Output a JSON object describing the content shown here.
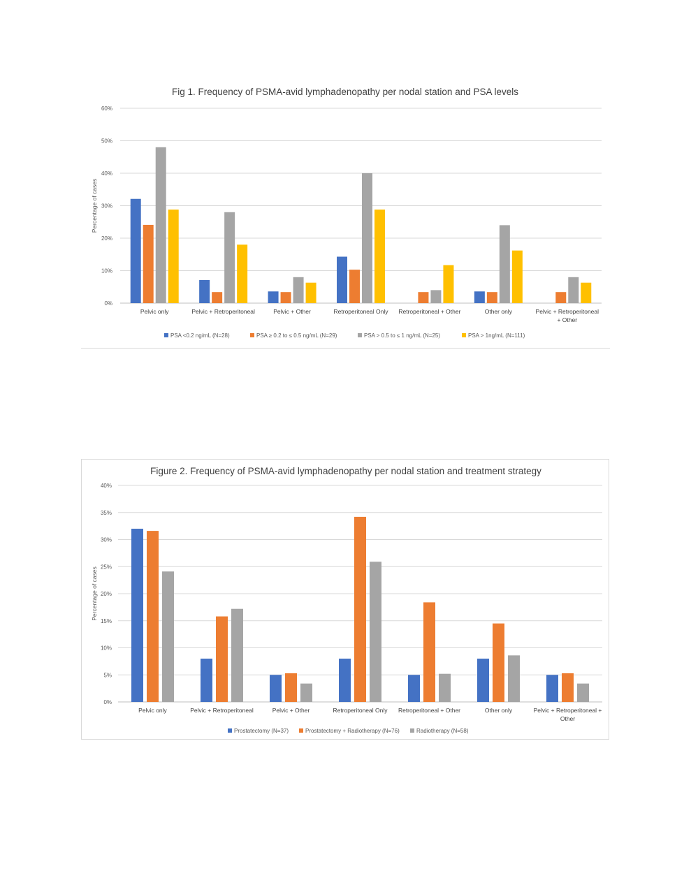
{
  "chart_data": [
    {
      "type": "bar",
      "title": "Fig 1. Frequency of PSMA-avid lymphadenopathy per nodal station and PSA levels",
      "xlabel": "",
      "ylabel": "Percentage of cases",
      "ylim": [
        0,
        60
      ],
      "yticks": [
        "0%",
        "10%",
        "20%",
        "30%",
        "40%",
        "50%",
        "60%"
      ],
      "grid": true,
      "legend_position": "bottom",
      "categories": [
        [
          "Pelvic  only"
        ],
        [
          "Pelvic + Retroperitoneal"
        ],
        [
          "Pelvic + Other"
        ],
        [
          "Retroperitoneal Only"
        ],
        [
          "Retroperitoneal + Other"
        ],
        [
          "Other only"
        ],
        [
          "Pelvic + Retroperitoneal",
          "+ Other"
        ]
      ],
      "series": [
        {
          "name": "PSA <0.2 ng/mL (N=28)",
          "color": "#4472c4",
          "values": [
            32.1,
            7.1,
            3.6,
            14.3,
            0,
            3.6,
            0
          ]
        },
        {
          "name": "PSA ≥ 0.2 to ≤ 0.5 ng/mL (N=29)",
          "color": "#ed7d31",
          "values": [
            24.1,
            3.4,
            3.4,
            10.3,
            3.4,
            3.4,
            3.4
          ]
        },
        {
          "name": "PSA > 0.5 to ≤ 1 ng/mL (N=25)",
          "color": "#a5a5a5",
          "values": [
            48,
            28,
            8,
            40,
            4,
            24,
            8
          ]
        },
        {
          "name": "PSA > 1ng/mL (N=111)",
          "color": "#ffc000",
          "values": [
            28.8,
            18,
            6.3,
            28.8,
            11.7,
            16.2,
            6.3
          ]
        }
      ]
    },
    {
      "type": "bar",
      "title": "Figure 2. Frequency of PSMA-avid lymphadenopathy  per nodal station and treatment strategy",
      "xlabel": "",
      "ylabel": "Percentage of cases",
      "ylim": [
        0,
        40
      ],
      "yticks": [
        "0%",
        "5%",
        "10%",
        "15%",
        "20%",
        "25%",
        "30%",
        "35%",
        "40%"
      ],
      "grid": true,
      "legend_position": "bottom",
      "categories": [
        [
          "Pelvic  only"
        ],
        [
          "Pelvic + Retroperitoneal"
        ],
        [
          "Pelvic + Other"
        ],
        [
          "Retroperitoneal Only"
        ],
        [
          "Retroperitoneal + Other"
        ],
        [
          "Other only"
        ],
        [
          "Pelvic + Retroperitoneal +",
          "Other"
        ]
      ],
      "series": [
        {
          "name": "Prostatectomy (N=37)",
          "color": "#4472c4",
          "values": [
            32,
            8,
            5,
            8,
            5,
            8,
            5
          ]
        },
        {
          "name": "Prostatectomy + Radiotherapy (N=76)",
          "color": "#ed7d31",
          "values": [
            31.6,
            15.8,
            5.3,
            34.2,
            18.4,
            14.5,
            5.3
          ]
        },
        {
          "name": "Radiotherapy (N=58)",
          "color": "#a5a5a5",
          "values": [
            24.1,
            17.2,
            3.4,
            25.9,
            5.2,
            8.6,
            3.4
          ]
        }
      ]
    }
  ]
}
